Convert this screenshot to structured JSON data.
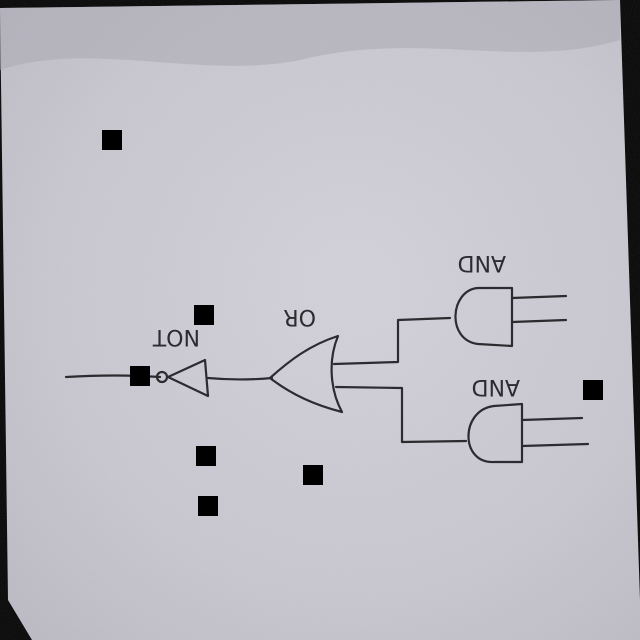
{
  "diagram": {
    "labels": {
      "not_gate": "NOT",
      "or_gate": "OR",
      "and_gate_top": "AND",
      "and_gate_bottom": "AND"
    }
  },
  "colors": {
    "paper": "#c9c8d1",
    "ink": "#2b2b30",
    "background": "#000000"
  }
}
